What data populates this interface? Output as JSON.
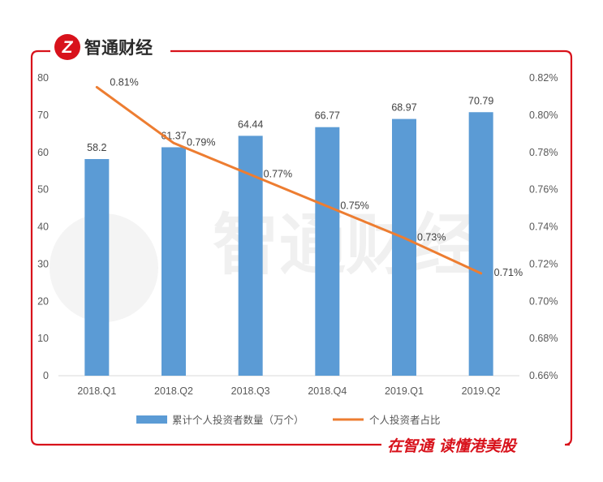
{
  "brand": {
    "logo_glyph": "Z",
    "name": "智通财经",
    "slogan": "在智通 读懂港美股",
    "accent_color": "#d8121b"
  },
  "watermark": {
    "text": "智通财经"
  },
  "chart_data": {
    "type": "bar+line",
    "title": "",
    "categories": [
      "2018.Q1",
      "2018.Q2",
      "2018.Q3",
      "2018.Q4",
      "2019.Q1",
      "2019.Q2"
    ],
    "series": [
      {
        "name": "累计个人投资者数量（万个）",
        "type": "bar",
        "axis": "left",
        "color": "#5b9bd5",
        "values": [
          58.2,
          61.37,
          64.44,
          66.77,
          68.97,
          70.79
        ],
        "labels": [
          "58.2",
          "61.37",
          "64.44",
          "66.77",
          "68.97",
          "70.79"
        ]
      },
      {
        "name": "个人投资者占比",
        "type": "line",
        "axis": "right",
        "color": "#ed7d31",
        "values": [
          0.815,
          0.785,
          0.768,
          0.751,
          0.734,
          0.715
        ],
        "labels": [
          "0.81%",
          "0.79%",
          "0.77%",
          "0.75%",
          "0.73%",
          "0.71%"
        ]
      }
    ],
    "y_left": {
      "min": 0,
      "max": 80,
      "ticks": [
        0,
        10,
        20,
        30,
        40,
        50,
        60,
        70,
        80
      ],
      "tick_labels": [
        "0",
        "10",
        "20",
        "30",
        "40",
        "50",
        "60",
        "70",
        "80"
      ]
    },
    "y_right": {
      "min": 0.66,
      "max": 0.82,
      "ticks": [
        0.66,
        0.68,
        0.7,
        0.72,
        0.74,
        0.76,
        0.78,
        0.8,
        0.82
      ],
      "tick_labels": [
        "0.66%",
        "0.68%",
        "0.70%",
        "0.72%",
        "0.74%",
        "0.76%",
        "0.78%",
        "0.80%",
        "0.82%"
      ]
    },
    "grid": false,
    "legend": "bottom-center"
  }
}
